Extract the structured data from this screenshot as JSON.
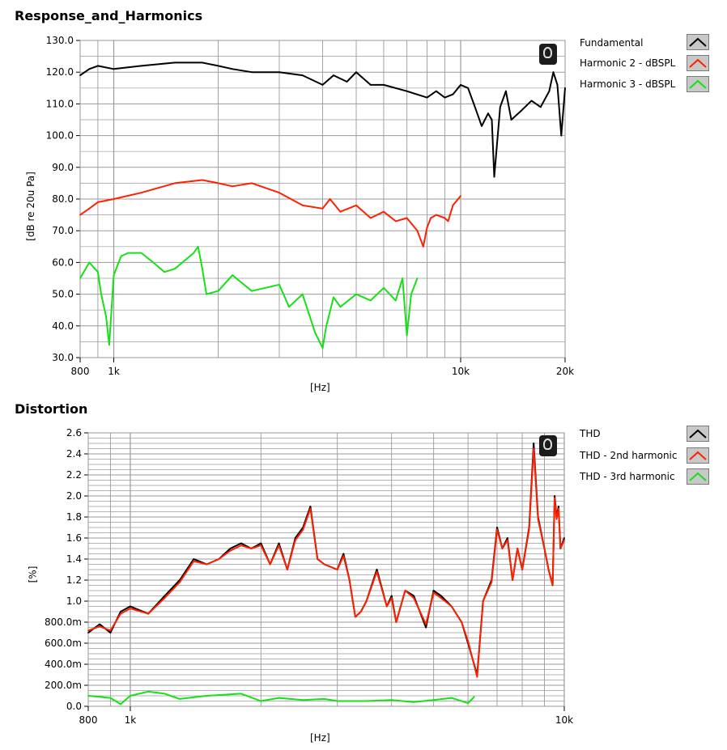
{
  "colors": {
    "black": "#000000",
    "red": "#ff2000",
    "green": "#16e016",
    "grid": "#9a9a9a"
  },
  "charts": [
    {
      "title": "Response_and_Harmonics",
      "help_icon": "help-icon",
      "xlabel": "[Hz]",
      "ylabel": "[dB re 20u Pa]",
      "y_tick_labels": [
        "30.0",
        "40.0",
        "50.0",
        "60.0",
        "70.0",
        "80.0",
        "90.0",
        "100.0",
        "110.0",
        "120.0",
        "130.0"
      ],
      "x_tick_labels": [
        "800",
        "1k",
        "10k",
        "20k"
      ],
      "legend": [
        "Fundamental",
        "Harmonic 2 - dBSPL",
        "Harmonic 3 - dBSPL"
      ]
    },
    {
      "title": "Distortion",
      "help_icon": "help-icon",
      "xlabel": "[Hz]",
      "ylabel": "[%]",
      "y_tick_labels": [
        "0.0",
        "200.0m",
        "400.0m",
        "600.0m",
        "800.0m",
        "1.0",
        "1.2",
        "1.4",
        "1.6",
        "1.8",
        "2.0",
        "2.2",
        "2.4",
        "2.6"
      ],
      "x_tick_labels": [
        "800",
        "1k",
        "10k"
      ],
      "legend": [
        "THD",
        "THD - 2nd harmonic",
        "THD - 3rd harmonic"
      ]
    }
  ],
  "chart_data": [
    {
      "type": "line",
      "title": "Response_and_Harmonics",
      "xlabel": "[Hz]",
      "ylabel": "[dB re 20u Pa]",
      "xscale": "log",
      "xlim": [
        800,
        20000
      ],
      "ylim": [
        30,
        130
      ],
      "grid": true,
      "legend_position": "right",
      "series": [
        {
          "name": "Fundamental",
          "color": "#000000",
          "x": [
            800,
            850,
            900,
            1000,
            1200,
            1500,
            1800,
            2000,
            2200,
            2500,
            3000,
            3500,
            4000,
            4300,
            4700,
            5000,
            5500,
            6000,
            7000,
            8000,
            8500,
            9000,
            9500,
            10000,
            10500,
            11000,
            11500,
            12000,
            12300,
            12500,
            13000,
            13500,
            14000,
            15000,
            16000,
            17000,
            18000,
            18500,
            19000,
            19500,
            20000
          ],
          "y": [
            119,
            121,
            122,
            121,
            122,
            123,
            123,
            122,
            121,
            120,
            120,
            119,
            116,
            119,
            117,
            120,
            116,
            116,
            114,
            112,
            114,
            112,
            113,
            116,
            115,
            109,
            103,
            107,
            105,
            87,
            109,
            114,
            105,
            108,
            111,
            109,
            114,
            120,
            116,
            100,
            115
          ]
        },
        {
          "name": "Harmonic 2 - dBSPL",
          "color": "#ff2000",
          "x": [
            800,
            850,
            900,
            1000,
            1200,
            1500,
            1800,
            2000,
            2200,
            2500,
            3000,
            3500,
            4000,
            4200,
            4500,
            5000,
            5500,
            6000,
            6500,
            7000,
            7500,
            7800,
            8000,
            8200,
            8500,
            9000,
            9200,
            9500,
            10000
          ],
          "y": [
            75,
            77,
            79,
            80,
            82,
            85,
            86,
            85,
            84,
            85,
            82,
            78,
            77,
            80,
            76,
            78,
            74,
            76,
            73,
            74,
            70,
            65,
            71,
            74,
            75,
            74,
            73,
            78,
            81
          ]
        },
        {
          "name": "Harmonic 3 - dBSPL",
          "color": "#16e016",
          "x": [
            800,
            850,
            900,
            920,
            950,
            970,
            1000,
            1050,
            1100,
            1200,
            1300,
            1400,
            1500,
            1700,
            1750,
            1800,
            1850,
            2000,
            2200,
            2500,
            3000,
            3200,
            3500,
            3800,
            4000,
            4100,
            4300,
            4500,
            5000,
            5500,
            6000,
            6500,
            6800,
            7000,
            7200,
            7500
          ],
          "y": [
            55,
            60,
            57,
            50,
            43,
            34,
            56,
            62,
            63,
            63,
            60,
            57,
            58,
            63,
            65,
            58,
            50,
            51,
            56,
            51,
            53,
            46,
            50,
            38,
            33,
            40,
            49,
            46,
            50,
            48,
            52,
            48,
            55,
            37,
            50,
            55
          ]
        }
      ]
    },
    {
      "type": "line",
      "title": "Distortion",
      "xlabel": "[Hz]",
      "ylabel": "[%]",
      "xscale": "log",
      "xlim": [
        800,
        10000
      ],
      "ylim": [
        0,
        2.6
      ],
      "grid": true,
      "legend_position": "right",
      "series": [
        {
          "name": "THD",
          "color": "#000000",
          "x": [
            800,
            850,
            900,
            950,
            1000,
            1100,
            1200,
            1300,
            1400,
            1500,
            1600,
            1700,
            1800,
            1900,
            2000,
            2100,
            2200,
            2300,
            2400,
            2500,
            2600,
            2700,
            2800,
            3000,
            3100,
            3200,
            3300,
            3400,
            3500,
            3700,
            3900,
            4000,
            4100,
            4300,
            4500,
            4800,
            5000,
            5200,
            5500,
            5800,
            6000,
            6300,
            6500,
            6800,
            7000,
            7200,
            7400,
            7600,
            7800,
            8000,
            8300,
            8500,
            8700,
            9000,
            9200,
            9400,
            9500,
            9600,
            9700,
            9800,
            10000
          ],
          "y": [
            0.7,
            0.78,
            0.7,
            0.9,
            0.95,
            0.88,
            1.05,
            1.2,
            1.4,
            1.35,
            1.4,
            1.5,
            1.55,
            1.5,
            1.55,
            1.35,
            1.55,
            1.3,
            1.6,
            1.7,
            1.9,
            1.4,
            1.35,
            1.3,
            1.45,
            1.2,
            0.85,
            0.9,
            1.0,
            1.3,
            0.95,
            1.05,
            0.8,
            1.1,
            1.05,
            0.75,
            1.1,
            1.05,
            0.95,
            0.8,
            0.6,
            0.3,
            1.0,
            1.2,
            1.7,
            1.5,
            1.6,
            1.2,
            1.5,
            1.3,
            1.7,
            2.5,
            1.8,
            1.5,
            1.3,
            1.15,
            2.0,
            1.8,
            1.9,
            1.5,
            1.6
          ]
        },
        {
          "name": "THD - 2nd harmonic",
          "color": "#ff2000",
          "x": [
            800,
            850,
            900,
            950,
            1000,
            1100,
            1200,
            1300,
            1400,
            1500,
            1600,
            1700,
            1800,
            1900,
            2000,
            2100,
            2200,
            2300,
            2400,
            2500,
            2600,
            2700,
            2800,
            3000,
            3100,
            3200,
            3300,
            3400,
            3500,
            3700,
            3900,
            4000,
            4100,
            4300,
            4500,
            4800,
            5000,
            5200,
            5500,
            5800,
            6000,
            6300,
            6500,
            6800,
            7000,
            7200,
            7400,
            7600,
            7800,
            8000,
            8300,
            8500,
            8700,
            9000,
            9200,
            9400,
            9500,
            9600,
            9700,
            9800,
            10000
          ],
          "y": [
            0.72,
            0.76,
            0.72,
            0.88,
            0.93,
            0.88,
            1.03,
            1.18,
            1.38,
            1.35,
            1.4,
            1.48,
            1.53,
            1.5,
            1.53,
            1.35,
            1.53,
            1.3,
            1.58,
            1.68,
            1.88,
            1.4,
            1.35,
            1.3,
            1.43,
            1.2,
            0.85,
            0.9,
            1.0,
            1.28,
            0.95,
            1.03,
            0.8,
            1.1,
            1.03,
            0.78,
            1.08,
            1.03,
            0.95,
            0.8,
            0.62,
            0.28,
            1.0,
            1.18,
            1.68,
            1.5,
            1.58,
            1.2,
            1.5,
            1.3,
            1.68,
            2.45,
            1.78,
            1.5,
            1.3,
            1.15,
            1.98,
            1.78,
            1.88,
            1.5,
            1.58
          ]
        },
        {
          "name": "THD - 3rd harmonic",
          "color": "#16e016",
          "x": [
            800,
            900,
            950,
            1000,
            1100,
            1200,
            1300,
            1500,
            1800,
            2000,
            2200,
            2500,
            2800,
            3000,
            3500,
            4000,
            4500,
            5000,
            5500,
            6000,
            6200
          ],
          "y": [
            0.1,
            0.08,
            0.02,
            0.1,
            0.14,
            0.12,
            0.07,
            0.1,
            0.12,
            0.05,
            0.08,
            0.06,
            0.07,
            0.05,
            0.05,
            0.06,
            0.04,
            0.06,
            0.08,
            0.03,
            0.09
          ]
        }
      ]
    }
  ]
}
